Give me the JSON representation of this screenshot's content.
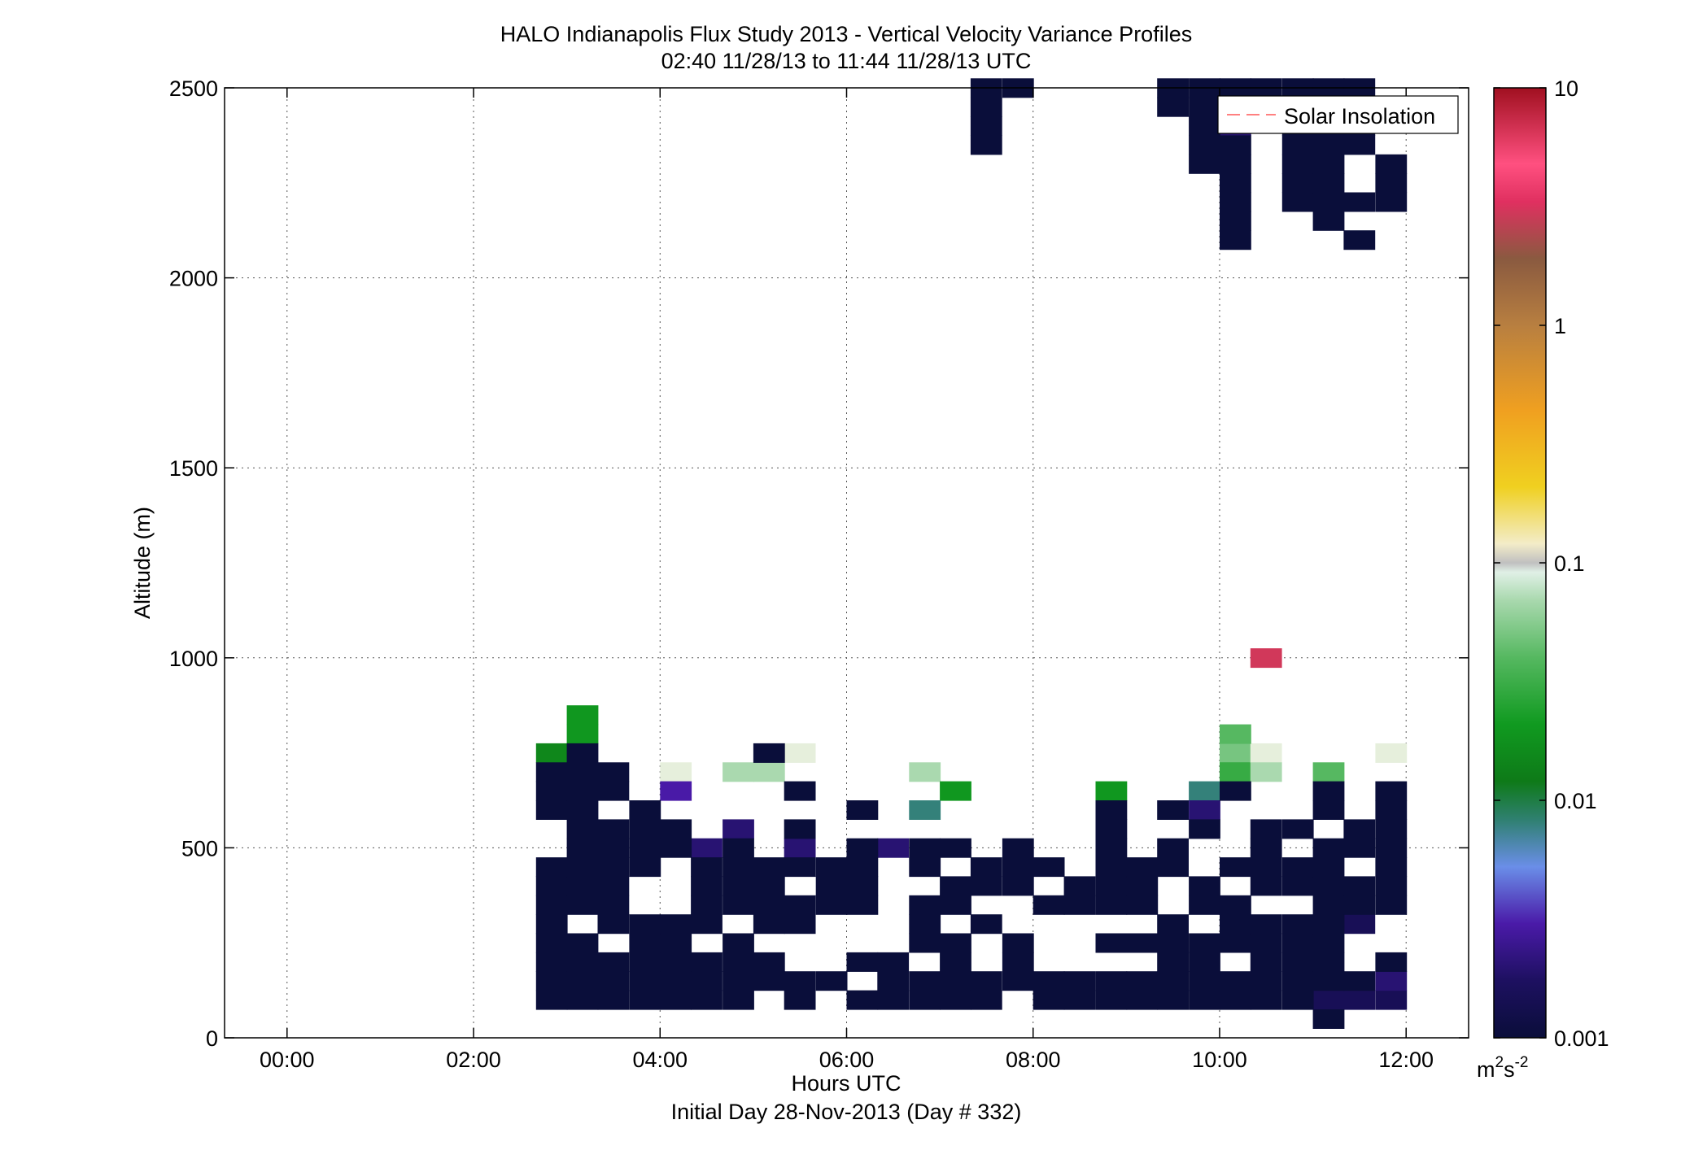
{
  "chart_data": {
    "type": "heatmap",
    "title": "HALO Indianapolis Flux Study 2013 - Vertical Velocity Variance Profiles",
    "subtitle": "02:40 11/28/13 to 11:44 11/28/13  UTC",
    "xlabel": "Hours UTC",
    "xlabel2": "Initial Day 28-Nov-2013 (Day # 332)",
    "ylabel": "Altitude (m)",
    "xlim_hours": [
      -0.67,
      12.67
    ],
    "ylim": [
      0,
      2500
    ],
    "x_ticks": [
      {
        "value": 0,
        "label": "00:00"
      },
      {
        "value": 2,
        "label": "02:00"
      },
      {
        "value": 4,
        "label": "04:00"
      },
      {
        "value": 6,
        "label": "06:00"
      },
      {
        "value": 8,
        "label": "08:00"
      },
      {
        "value": 10,
        "label": "10:00"
      },
      {
        "value": 12,
        "label": "12:00"
      }
    ],
    "y_ticks": [
      {
        "value": 0,
        "label": "0"
      },
      {
        "value": 500,
        "label": "500"
      },
      {
        "value": 1000,
        "label": "1000"
      },
      {
        "value": 1500,
        "label": "1500"
      },
      {
        "value": 2000,
        "label": "2000"
      },
      {
        "value": 2500,
        "label": "2500"
      }
    ],
    "grid": true,
    "legend": {
      "position": "top-right",
      "entries": [
        {
          "label": "Solar Insolation",
          "color": "#ff8080",
          "style": "dashed"
        }
      ]
    },
    "colorbar": {
      "scale": "log",
      "range": [
        0.001,
        10
      ],
      "unit_base": "m",
      "unit_exp1": "2",
      "unit_mid": "s",
      "unit_exp2": "-2",
      "ticks": [
        {
          "value": 0.001,
          "label": "0.001"
        },
        {
          "value": 0.01,
          "label": "0.01"
        },
        {
          "value": 0.1,
          "label": "0.1"
        },
        {
          "value": 1,
          "label": "1"
        },
        {
          "value": 10,
          "label": "10"
        }
      ]
    },
    "bin_width_hours": 0.333,
    "bin_height_m": 50,
    "cells": [
      [
        2.67,
        750,
        0.015
      ],
      [
        3.0,
        800,
        0.02
      ],
      [
        3.0,
        850,
        0.02
      ],
      [
        4.0,
        700,
        0.1
      ],
      [
        4.67,
        700,
        0.07
      ],
      [
        5.0,
        700,
        0.07
      ],
      [
        5.33,
        750,
        0.1
      ],
      [
        6.67,
        700,
        0.07
      ],
      [
        7.0,
        650,
        0.02
      ],
      [
        6.67,
        600,
        0.008
      ],
      [
        8.67,
        650,
        0.02
      ],
      [
        9.67,
        650,
        0.008
      ],
      [
        10.0,
        750,
        0.05
      ],
      [
        10.0,
        700,
        0.04
      ],
      [
        10.0,
        700,
        0.03
      ],
      [
        10.33,
        750,
        0.1
      ],
      [
        10.33,
        700,
        0.07
      ],
      [
        11.0,
        700,
        0.04
      ],
      [
        11.67,
        750,
        0.1
      ],
      [
        10.0,
        800,
        0.04
      ],
      [
        10.33,
        1000,
        3.0
      ],
      [
        4.0,
        650,
        0.003
      ],
      [
        4.33,
        500,
        0.002
      ],
      [
        4.67,
        550,
        0.002
      ],
      [
        5.33,
        500,
        0.002
      ],
      [
        6.33,
        500,
        0.002
      ],
      [
        9.67,
        600,
        0.002
      ],
      [
        11.0,
        100,
        0.0015
      ],
      [
        11.67,
        100,
        0.0015
      ],
      [
        11.67,
        150,
        0.002
      ],
      [
        11.33,
        100,
        0.0015
      ],
      [
        10.0,
        2450,
        0.002
      ],
      [
        10.0,
        2400,
        0.002
      ],
      [
        11.33,
        300,
        0.0015
      ],
      [
        2.67,
        100,
        0.001
      ],
      [
        2.67,
        150,
        0.001
      ],
      [
        2.67,
        200,
        0.001
      ],
      [
        2.67,
        250,
        0.001
      ],
      [
        2.67,
        300,
        0.001
      ],
      [
        2.67,
        350,
        0.001
      ],
      [
        2.67,
        400,
        0.001
      ],
      [
        2.67,
        450,
        0.001
      ],
      [
        2.67,
        600,
        0.001
      ],
      [
        2.67,
        650,
        0.001
      ],
      [
        2.67,
        700,
        0.001
      ],
      [
        3.0,
        100,
        0.001
      ],
      [
        3.0,
        150,
        0.001
      ],
      [
        3.0,
        200,
        0.001
      ],
      [
        3.0,
        250,
        0.001
      ],
      [
        3.0,
        350,
        0.001
      ],
      [
        3.0,
        400,
        0.001
      ],
      [
        3.0,
        450,
        0.001
      ],
      [
        3.0,
        500,
        0.001
      ],
      [
        3.0,
        550,
        0.001
      ],
      [
        3.0,
        600,
        0.001
      ],
      [
        3.0,
        650,
        0.001
      ],
      [
        3.0,
        700,
        0.001
      ],
      [
        3.0,
        750,
        0.001
      ],
      [
        3.33,
        100,
        0.001
      ],
      [
        3.33,
        150,
        0.001
      ],
      [
        3.33,
        200,
        0.001
      ],
      [
        3.33,
        300,
        0.001
      ],
      [
        3.33,
        350,
        0.001
      ],
      [
        3.33,
        400,
        0.001
      ],
      [
        3.33,
        450,
        0.001
      ],
      [
        3.33,
        500,
        0.001
      ],
      [
        3.33,
        550,
        0.001
      ],
      [
        3.33,
        650,
        0.001
      ],
      [
        3.33,
        700,
        0.001
      ],
      [
        3.67,
        100,
        0.001
      ],
      [
        3.67,
        150,
        0.001
      ],
      [
        3.67,
        200,
        0.001
      ],
      [
        3.67,
        250,
        0.001
      ],
      [
        3.67,
        300,
        0.001
      ],
      [
        3.67,
        450,
        0.001
      ],
      [
        3.67,
        500,
        0.001
      ],
      [
        3.67,
        550,
        0.001
      ],
      [
        3.67,
        600,
        0.001
      ],
      [
        4.0,
        100,
        0.001
      ],
      [
        4.0,
        150,
        0.001
      ],
      [
        4.0,
        200,
        0.001
      ],
      [
        4.0,
        250,
        0.001
      ],
      [
        4.0,
        300,
        0.001
      ],
      [
        4.0,
        500,
        0.001
      ],
      [
        4.0,
        550,
        0.001
      ],
      [
        4.33,
        100,
        0.001
      ],
      [
        4.33,
        150,
        0.001
      ],
      [
        4.33,
        200,
        0.001
      ],
      [
        4.33,
        300,
        0.001
      ],
      [
        4.33,
        350,
        0.001
      ],
      [
        4.33,
        400,
        0.001
      ],
      [
        4.33,
        450,
        0.001
      ],
      [
        4.67,
        100,
        0.001
      ],
      [
        4.67,
        150,
        0.001
      ],
      [
        4.67,
        200,
        0.001
      ],
      [
        4.67,
        250,
        0.001
      ],
      [
        4.67,
        350,
        0.001
      ],
      [
        4.67,
        400,
        0.001
      ],
      [
        4.67,
        450,
        0.001
      ],
      [
        4.67,
        500,
        0.001
      ],
      [
        5.0,
        150,
        0.001
      ],
      [
        5.0,
        200,
        0.001
      ],
      [
        5.0,
        300,
        0.001
      ],
      [
        5.0,
        350,
        0.001
      ],
      [
        5.0,
        400,
        0.001
      ],
      [
        5.0,
        450,
        0.001
      ],
      [
        5.0,
        750,
        0.001
      ],
      [
        5.33,
        100,
        0.001
      ],
      [
        5.33,
        150,
        0.001
      ],
      [
        5.33,
        300,
        0.001
      ],
      [
        5.33,
        350,
        0.001
      ],
      [
        5.33,
        450,
        0.001
      ],
      [
        5.33,
        550,
        0.001
      ],
      [
        5.33,
        650,
        0.001
      ],
      [
        5.67,
        150,
        0.001
      ],
      [
        5.67,
        350,
        0.001
      ],
      [
        5.67,
        400,
        0.001
      ],
      [
        5.67,
        450,
        0.001
      ],
      [
        6.0,
        100,
        0.001
      ],
      [
        6.0,
        200,
        0.001
      ],
      [
        6.0,
        350,
        0.001
      ],
      [
        6.0,
        400,
        0.001
      ],
      [
        6.0,
        450,
        0.001
      ],
      [
        6.0,
        500,
        0.001
      ],
      [
        6.0,
        600,
        0.001
      ],
      [
        6.33,
        100,
        0.001
      ],
      [
        6.33,
        150,
        0.001
      ],
      [
        6.33,
        200,
        0.001
      ],
      [
        6.67,
        100,
        0.001
      ],
      [
        6.67,
        150,
        0.001
      ],
      [
        6.67,
        250,
        0.001
      ],
      [
        6.67,
        300,
        0.001
      ],
      [
        6.67,
        350,
        0.001
      ],
      [
        6.67,
        450,
        0.001
      ],
      [
        6.67,
        500,
        0.001
      ],
      [
        7.0,
        100,
        0.001
      ],
      [
        7.0,
        150,
        0.001
      ],
      [
        7.0,
        200,
        0.001
      ],
      [
        7.0,
        250,
        0.001
      ],
      [
        7.0,
        350,
        0.001
      ],
      [
        7.0,
        400,
        0.001
      ],
      [
        7.0,
        500,
        0.001
      ],
      [
        7.33,
        100,
        0.001
      ],
      [
        7.33,
        150,
        0.001
      ],
      [
        7.33,
        300,
        0.001
      ],
      [
        7.33,
        400,
        0.001
      ],
      [
        7.33,
        450,
        0.001
      ],
      [
        7.33,
        2350,
        0.001
      ],
      [
        7.33,
        2400,
        0.001
      ],
      [
        7.33,
        2450,
        0.001
      ],
      [
        7.33,
        2500,
        0.001
      ],
      [
        7.67,
        150,
        0.001
      ],
      [
        7.67,
        200,
        0.001
      ],
      [
        7.67,
        250,
        0.001
      ],
      [
        7.67,
        400,
        0.001
      ],
      [
        7.67,
        450,
        0.001
      ],
      [
        7.67,
        500,
        0.001
      ],
      [
        7.67,
        2500,
        0.001
      ],
      [
        8.0,
        100,
        0.001
      ],
      [
        8.0,
        150,
        0.001
      ],
      [
        8.0,
        350,
        0.001
      ],
      [
        8.0,
        450,
        0.001
      ],
      [
        8.33,
        100,
        0.001
      ],
      [
        8.33,
        150,
        0.001
      ],
      [
        8.33,
        350,
        0.001
      ],
      [
        8.33,
        400,
        0.001
      ],
      [
        8.67,
        100,
        0.001
      ],
      [
        8.67,
        150,
        0.001
      ],
      [
        8.67,
        250,
        0.001
      ],
      [
        8.67,
        350,
        0.001
      ],
      [
        8.67,
        400,
        0.001
      ],
      [
        8.67,
        450,
        0.001
      ],
      [
        8.67,
        500,
        0.001
      ],
      [
        8.67,
        550,
        0.001
      ],
      [
        8.67,
        600,
        0.001
      ],
      [
        9.0,
        100,
        0.001
      ],
      [
        9.0,
        150,
        0.001
      ],
      [
        9.0,
        250,
        0.001
      ],
      [
        9.0,
        350,
        0.001
      ],
      [
        9.0,
        400,
        0.001
      ],
      [
        9.0,
        450,
        0.001
      ],
      [
        9.33,
        100,
        0.001
      ],
      [
        9.33,
        150,
        0.001
      ],
      [
        9.33,
        200,
        0.001
      ],
      [
        9.33,
        250,
        0.001
      ],
      [
        9.33,
        300,
        0.001
      ],
      [
        9.33,
        450,
        0.001
      ],
      [
        9.33,
        500,
        0.001
      ],
      [
        9.33,
        600,
        0.001
      ],
      [
        9.33,
        2450,
        0.001
      ],
      [
        9.33,
        2500,
        0.001
      ],
      [
        9.67,
        100,
        0.001
      ],
      [
        9.67,
        150,
        0.001
      ],
      [
        9.67,
        200,
        0.001
      ],
      [
        9.67,
        250,
        0.001
      ],
      [
        9.67,
        350,
        0.001
      ],
      [
        9.67,
        400,
        0.001
      ],
      [
        9.67,
        550,
        0.001
      ],
      [
        9.67,
        2300,
        0.001
      ],
      [
        9.67,
        2350,
        0.001
      ],
      [
        9.67,
        2400,
        0.001
      ],
      [
        9.67,
        2450,
        0.001
      ],
      [
        9.67,
        2500,
        0.001
      ],
      [
        10.0,
        100,
        0.001
      ],
      [
        10.0,
        150,
        0.001
      ],
      [
        10.0,
        250,
        0.001
      ],
      [
        10.0,
        300,
        0.001
      ],
      [
        10.0,
        350,
        0.001
      ],
      [
        10.0,
        450,
        0.001
      ],
      [
        10.0,
        650,
        0.001
      ],
      [
        10.0,
        2100,
        0.001
      ],
      [
        10.0,
        2150,
        0.001
      ],
      [
        10.0,
        2200,
        0.001
      ],
      [
        10.0,
        2250,
        0.001
      ],
      [
        10.0,
        2300,
        0.001
      ],
      [
        10.0,
        2350,
        0.001
      ],
      [
        10.0,
        2500,
        0.001
      ],
      [
        10.33,
        100,
        0.001
      ],
      [
        10.33,
        150,
        0.001
      ],
      [
        10.33,
        200,
        0.001
      ],
      [
        10.33,
        250,
        0.001
      ],
      [
        10.33,
        300,
        0.001
      ],
      [
        10.33,
        400,
        0.001
      ],
      [
        10.33,
        450,
        0.001
      ],
      [
        10.33,
        500,
        0.001
      ],
      [
        10.33,
        550,
        0.001
      ],
      [
        10.33,
        2450,
        0.001
      ],
      [
        10.33,
        2500,
        0.001
      ],
      [
        10.67,
        100,
        0.001
      ],
      [
        10.67,
        150,
        0.001
      ],
      [
        10.67,
        200,
        0.001
      ],
      [
        10.67,
        250,
        0.001
      ],
      [
        10.67,
        300,
        0.001
      ],
      [
        10.67,
        400,
        0.001
      ],
      [
        10.67,
        450,
        0.001
      ],
      [
        10.67,
        550,
        0.001
      ],
      [
        10.67,
        2200,
        0.001
      ],
      [
        10.67,
        2250,
        0.001
      ],
      [
        10.67,
        2300,
        0.001
      ],
      [
        10.67,
        2350,
        0.001
      ],
      [
        10.67,
        2400,
        0.001
      ],
      [
        10.67,
        2450,
        0.001
      ],
      [
        10.67,
        2500,
        0.001
      ],
      [
        11.0,
        50,
        0.001
      ],
      [
        11.0,
        150,
        0.001
      ],
      [
        11.0,
        200,
        0.001
      ],
      [
        11.0,
        250,
        0.001
      ],
      [
        11.0,
        300,
        0.001
      ],
      [
        11.0,
        350,
        0.001
      ],
      [
        11.0,
        400,
        0.001
      ],
      [
        11.0,
        450,
        0.001
      ],
      [
        11.0,
        500,
        0.001
      ],
      [
        11.0,
        600,
        0.001
      ],
      [
        11.0,
        650,
        0.001
      ],
      [
        11.0,
        2150,
        0.001
      ],
      [
        11.0,
        2200,
        0.001
      ],
      [
        11.0,
        2250,
        0.001
      ],
      [
        11.0,
        2300,
        0.001
      ],
      [
        11.0,
        2350,
        0.001
      ],
      [
        11.0,
        2400,
        0.001
      ],
      [
        11.0,
        2450,
        0.001
      ],
      [
        11.0,
        2500,
        0.001
      ],
      [
        11.33,
        150,
        0.001
      ],
      [
        11.33,
        350,
        0.001
      ],
      [
        11.33,
        400,
        0.001
      ],
      [
        11.33,
        500,
        0.001
      ],
      [
        11.33,
        550,
        0.001
      ],
      [
        11.33,
        2100,
        0.001
      ],
      [
        11.33,
        2200,
        0.001
      ],
      [
        11.33,
        2350,
        0.001
      ],
      [
        11.33,
        2400,
        0.001
      ],
      [
        11.33,
        2450,
        0.001
      ],
      [
        11.33,
        2500,
        0.001
      ],
      [
        11.67,
        200,
        0.001
      ],
      [
        11.67,
        350,
        0.001
      ],
      [
        11.67,
        400,
        0.001
      ],
      [
        11.67,
        450,
        0.001
      ],
      [
        11.67,
        500,
        0.001
      ],
      [
        11.67,
        550,
        0.001
      ],
      [
        11.67,
        600,
        0.001
      ],
      [
        11.67,
        650,
        0.001
      ],
      [
        11.67,
        2200,
        0.001
      ],
      [
        11.67,
        2250,
        0.001
      ],
      [
        11.67,
        2300,
        0.001
      ]
    ]
  }
}
